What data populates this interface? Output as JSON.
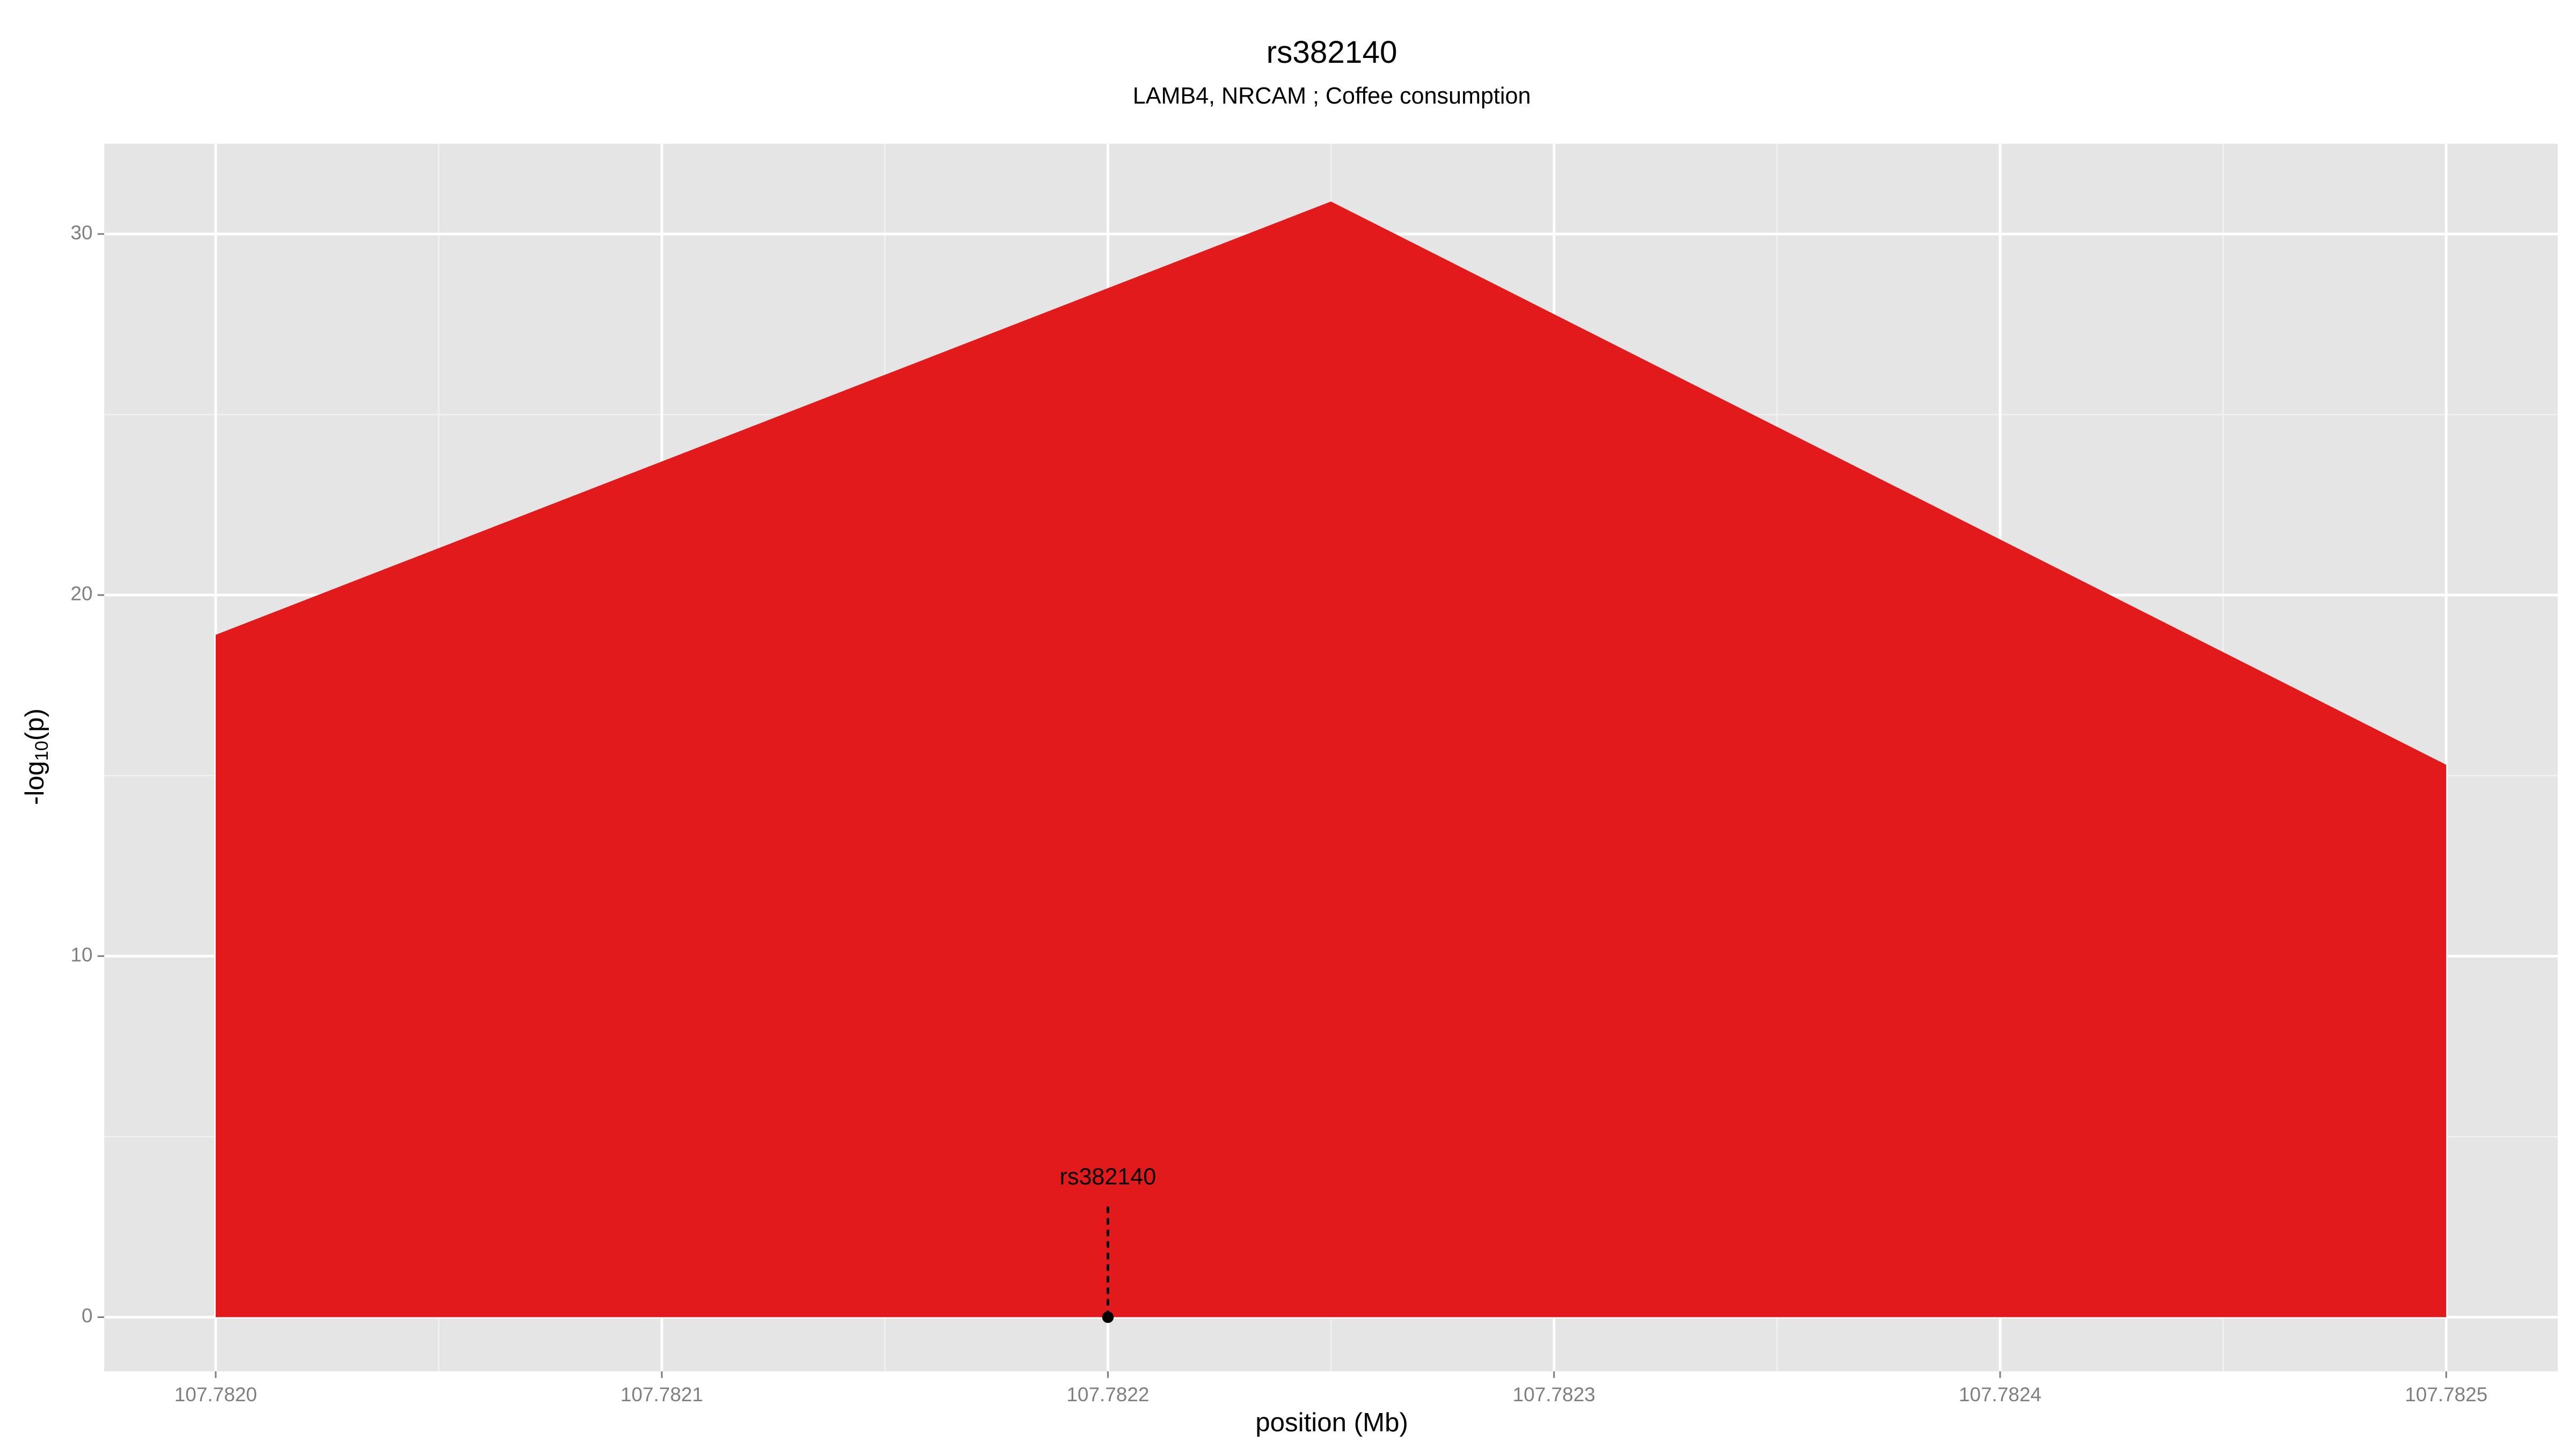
{
  "chart_data": {
    "type": "area",
    "title": "rs382140",
    "subtitle": "LAMB4, NRCAM ; Coffee consumption",
    "xlabel": "position (Mb)",
    "ylabel": [
      "-log",
      "10",
      "(p)"
    ],
    "x": [
      107.782,
      107.78225,
      107.7825
    ],
    "values": [
      18.9,
      30.9,
      15.3
    ],
    "color": "#e31a1c",
    "xlim": [
      107.781975,
      107.782525
    ],
    "ylim": [
      -1.5,
      32.5
    ],
    "xticks": [
      {
        "value": 107.782,
        "label": "107.7820"
      },
      107.7821,
      107.7822,
      107.7823,
      107.7824,
      107.7825
    ],
    "yticks": [
      0,
      10,
      20,
      30
    ],
    "grid": true,
    "annotations": [
      {
        "text": "rs382140",
        "x": 107.7822,
        "y": 0
      }
    ]
  }
}
